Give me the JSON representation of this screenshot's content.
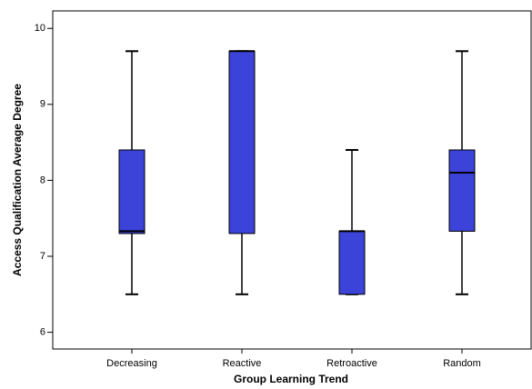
{
  "chart_data": {
    "type": "box",
    "x_label": "Group Learning Trend",
    "y_label": "Access Qualification Average Degree",
    "categories": [
      "Decreasing",
      "Reactive",
      "Retroactive",
      "Random"
    ],
    "min": [
      6.5,
      6.5,
      6.5,
      6.5
    ],
    "q1": [
      7.3,
      7.3,
      6.5,
      7.33
    ],
    "median": [
      7.33,
      9.7,
      7.33,
      8.1
    ],
    "q3": [
      8.4,
      9.7,
      7.33,
      8.4
    ],
    "max": [
      9.7,
      9.7,
      8.4,
      9.7
    ],
    "color": "#3b43d9",
    "ylim": [
      5.78,
      10.23
    ],
    "yticks": [
      6,
      7,
      8,
      9,
      10
    ],
    "grid": false
  }
}
